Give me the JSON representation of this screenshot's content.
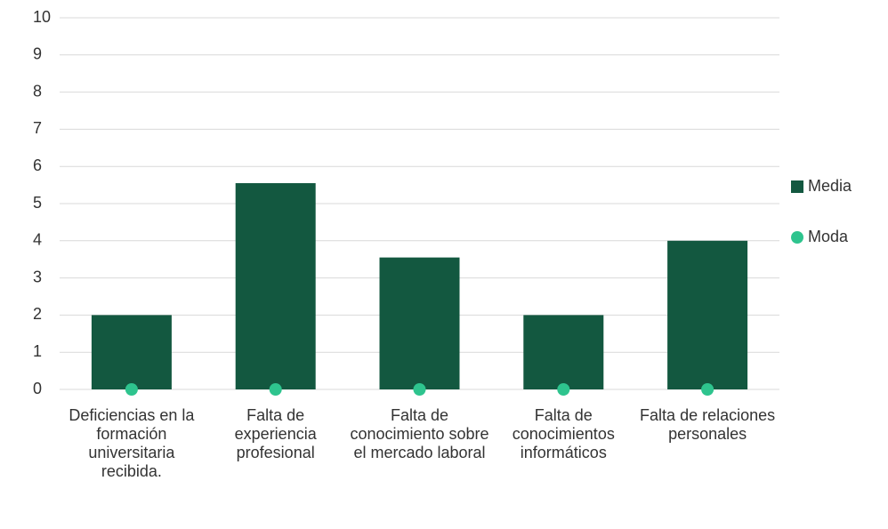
{
  "chart_data": {
    "type": "bar",
    "categories": [
      "Deficiencias en la formación universitaria recibida.",
      "Falta de experiencia profesional",
      "Falta de conocimiento sobre el mercado laboral",
      "Falta de conocimientos informáticos",
      "Falta de relaciones personales"
    ],
    "series": [
      {
        "name": "Media",
        "type": "bar",
        "color": "#135840",
        "values": [
          2,
          5.55,
          3.55,
          2,
          4
        ]
      },
      {
        "name": "Moda",
        "type": "scatter",
        "color": "#2ec48e",
        "values": [
          0,
          0,
          0,
          0,
          0
        ]
      }
    ],
    "ylim": [
      0,
      10
    ],
    "yticks": [
      0,
      1,
      2,
      3,
      4,
      5,
      6,
      7,
      8,
      9,
      10
    ],
    "grid": true,
    "legend": "right"
  }
}
